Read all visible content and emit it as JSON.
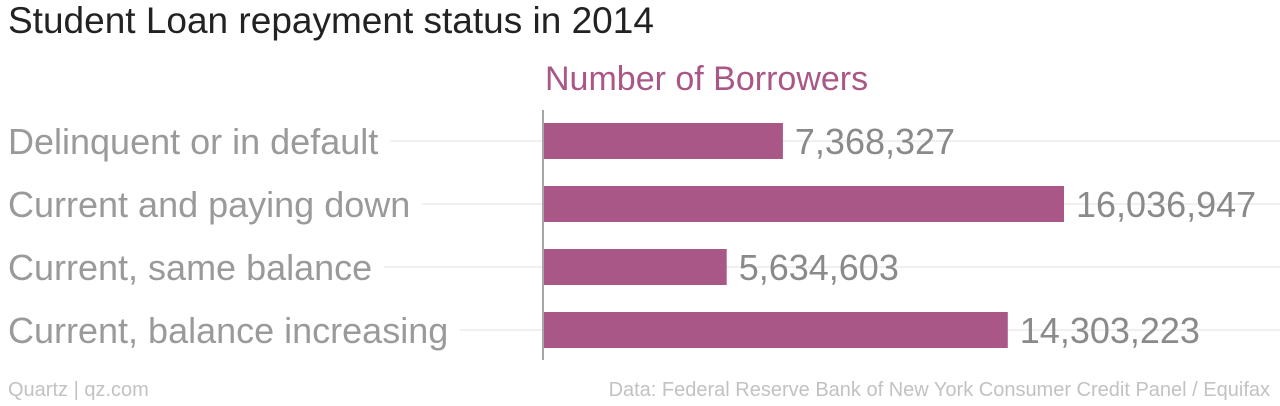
{
  "colors": {
    "bar": "#a95786",
    "series_label": "#a95786",
    "gridline": "#ececec",
    "axis": "#888888"
  },
  "chart_data": {
    "type": "bar",
    "orientation": "horizontal",
    "title": "Student Loan repayment status in 2014",
    "categories": [
      "Delinquent or in default",
      "Current and paying down",
      "Current, same balance",
      "Current, balance increasing"
    ],
    "series": [
      {
        "name": "Number of Borrowers",
        "values": [
          7368327,
          16036947,
          5634603,
          14303223
        ]
      }
    ],
    "data_labels": [
      "7,368,327",
      "16,036,947",
      "5,634,603",
      "14,303,223"
    ],
    "xlim": [
      0,
      16036947
    ],
    "grid": true,
    "legend": "none"
  },
  "footer": {
    "source_left": "Quartz | qz.com",
    "source_right": "Data: Federal Reserve Bank of New York Consumer Credit Panel / Equifax"
  }
}
